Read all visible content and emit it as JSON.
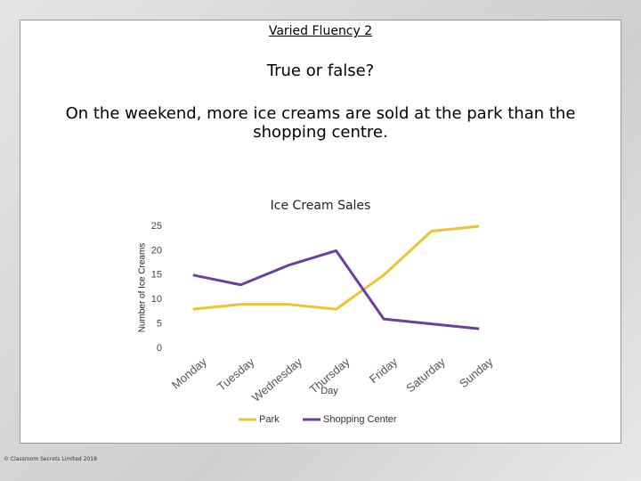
{
  "slide": {
    "heading": "Varied Fluency 2",
    "prompt": "True or false?",
    "question": "On the weekend, more ice creams are sold at the park than the shopping centre.",
    "copyright": "© Classroom Secrets Limited 2018"
  },
  "chart_data": {
    "type": "line",
    "title": "Ice Cream Sales",
    "x_label": "Day",
    "y_label": "Number of Ice Creams",
    "categories": [
      "Monday",
      "Tuesday",
      "Wednesday",
      "Thursday",
      "Friday",
      "Saturday",
      "Sunday"
    ],
    "series": [
      {
        "name": "Park",
        "color": "#f2c12e",
        "values": [
          8,
          9,
          9,
          8,
          15,
          24,
          25
        ]
      },
      {
        "name": "Shopping Center",
        "color": "#6b3fa0",
        "values": [
          15,
          13,
          17,
          20,
          6,
          5,
          4
        ]
      }
    ],
    "ylim": [
      0,
      25
    ],
    "yticks": [
      0,
      5,
      10,
      15,
      20,
      25
    ],
    "grid": false,
    "legend": "bottom"
  }
}
